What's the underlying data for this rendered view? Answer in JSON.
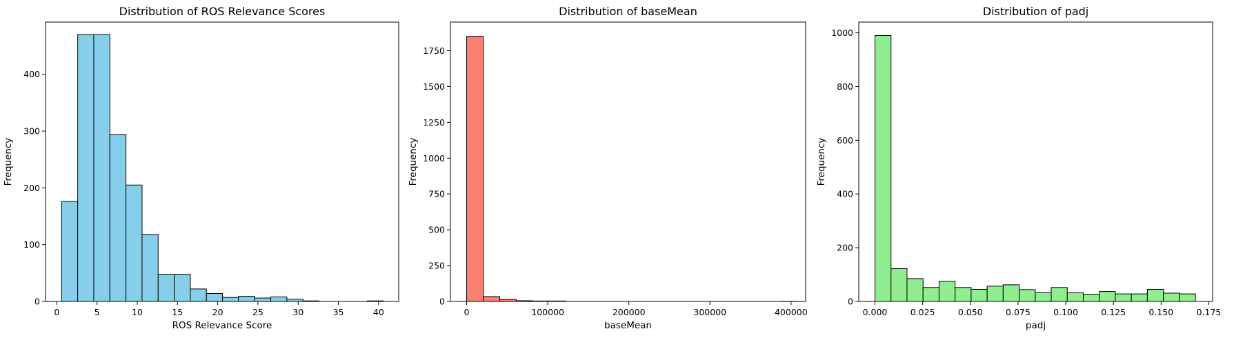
{
  "chart_data": [
    {
      "type": "bar",
      "title": "Distribution of ROS Relevance Scores",
      "xlabel": "ROS Relevance Score",
      "ylabel": "Frequency",
      "color": "#87CEEB",
      "xlim": [
        -1.4,
        42.5
      ],
      "ylim": [
        0,
        492
      ],
      "xticks": [
        0,
        5,
        10,
        15,
        20,
        25,
        30,
        35,
        40
      ],
      "xtick_labels": [
        "0",
        "5",
        "10",
        "15",
        "20",
        "25",
        "30",
        "35",
        "40"
      ],
      "yticks": [
        0,
        100,
        200,
        300,
        400
      ],
      "ytick_labels": [
        "0",
        "100",
        "200",
        "300",
        "400"
      ],
      "bin_edges": [
        0.6,
        2.6,
        4.6,
        6.6,
        8.6,
        10.6,
        12.6,
        14.6,
        16.6,
        18.6,
        20.6,
        22.6,
        24.6,
        26.6,
        28.6,
        30.6,
        32.6,
        34.6,
        36.6,
        38.6,
        40.6
      ],
      "values": [
        176,
        470,
        470,
        294,
        205,
        118,
        48,
        48,
        22,
        14,
        7,
        9,
        6,
        8,
        4,
        1,
        0,
        0,
        0,
        1
      ]
    },
    {
      "type": "bar",
      "title": "Distribution of baseMean",
      "xlabel": "baseMean",
      "ylabel": "Frequency",
      "color": "#FA8072",
      "xlim": [
        -20000,
        418000
      ],
      "ylim": [
        0,
        1950
      ],
      "xticks": [
        0,
        100000,
        200000,
        300000,
        400000
      ],
      "xtick_labels": [
        "0",
        "100000",
        "200000",
        "300000",
        "400000"
      ],
      "yticks": [
        0,
        250,
        500,
        750,
        1000,
        1250,
        1500,
        1750
      ],
      "ytick_labels": [
        "0",
        "250",
        "500",
        "750",
        "1000",
        "1250",
        "1500",
        "1750"
      ],
      "bin_edges": [
        0,
        20400,
        40800,
        61200,
        81600,
        102000,
        122400,
        142800,
        163200,
        183600,
        204000,
        224400,
        244800,
        265200,
        285600,
        306000,
        326400,
        346800,
        367200,
        387600,
        408000
      ],
      "values": [
        1850,
        34,
        14,
        5,
        3,
        3,
        0,
        0,
        0,
        0,
        0,
        0,
        0,
        0,
        0,
        0,
        0,
        0,
        0,
        1
      ]
    },
    {
      "type": "bar",
      "title": "Distribution of padj",
      "xlabel": "padj",
      "ylabel": "Frequency",
      "color": "#90EE90",
      "xlim": [
        -0.0085,
        0.177
      ],
      "ylim": [
        0,
        1040
      ],
      "xticks": [
        0.0,
        0.025,
        0.05,
        0.075,
        0.1,
        0.125,
        0.15,
        0.175
      ],
      "xtick_labels": [
        "0.000",
        "0.025",
        "0.050",
        "0.075",
        "0.100",
        "0.125",
        "0.150",
        "0.175"
      ],
      "yticks": [
        0,
        200,
        400,
        600,
        800,
        1000
      ],
      "ytick_labels": [
        "0",
        "200",
        "400",
        "600",
        "800",
        "1000"
      ],
      "bin_edges": [
        0.0,
        0.0084,
        0.0168,
        0.0252,
        0.0336,
        0.042,
        0.0504,
        0.0588,
        0.0672,
        0.0756,
        0.084,
        0.0924,
        0.1008,
        0.1092,
        0.1176,
        0.126,
        0.1344,
        0.1428,
        0.1512,
        0.1596,
        0.168
      ],
      "values": [
        990,
        122,
        85,
        52,
        75,
        52,
        45,
        57,
        62,
        44,
        33,
        52,
        32,
        27,
        37,
        28,
        28,
        45,
        31,
        28
      ]
    }
  ]
}
